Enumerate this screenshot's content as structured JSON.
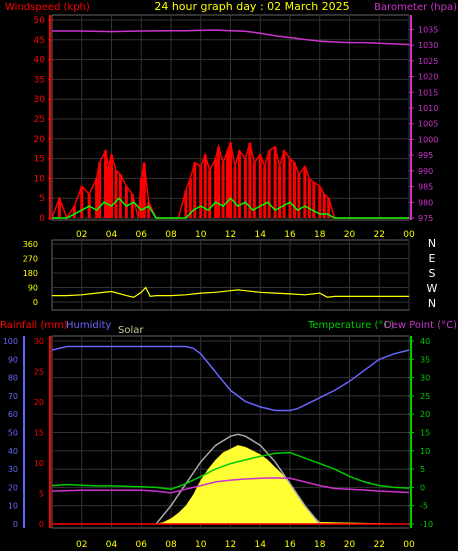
{
  "title": "24 hour graph day : 02 March 2025",
  "colors": {
    "wind_speed": "#ff0000",
    "wind_avg": "#00ff00",
    "wind_gust_white": "#ffffff",
    "barometer": "#cc33cc",
    "wind_dir": "#ffff00",
    "rain_axis": "#ff0000",
    "humidity": "#6666ff",
    "solar_label": "#cccc99",
    "temperature": "#00cc00",
    "dew_point": "#cc33cc",
    "solar_fill": "#ffff33",
    "solar_max": "#aaaaaa",
    "grid": "#333333",
    "axis_text": "#ffff00"
  },
  "chart_data": [
    {
      "type": "line",
      "name": "wind_barometer",
      "labels": {
        "left": "Windspeed (kph)",
        "right": "Barometer (hpa)"
      },
      "x_ticks": [
        "02",
        "04",
        "06",
        "08",
        "10",
        "12",
        "14",
        "16",
        "18",
        "20",
        "22",
        "00"
      ],
      "left_ticks": [
        "0",
        "5",
        "10",
        "15",
        "20",
        "25",
        "30",
        "35",
        "40",
        "45",
        "50"
      ],
      "right_ticks": [
        "975",
        "980",
        "985",
        "990",
        "995",
        "1000",
        "1005",
        "1010",
        "1015",
        "1020",
        "1025",
        "1030",
        "1035"
      ],
      "ylim_left": [
        0,
        50
      ],
      "ylim_right": [
        975,
        1038
      ],
      "xlim_hours": [
        0,
        24
      ],
      "series": [
        {
          "name": "Barometer",
          "axis": "right",
          "x": [
            0,
            2,
            4,
            6,
            8,
            9,
            10,
            11,
            12,
            13,
            14,
            15,
            16,
            17,
            18,
            19,
            20,
            21,
            22,
            23,
            24
          ],
          "y": [
            1034.5,
            1034.5,
            1034.3,
            1034.5,
            1034.6,
            1034.6,
            1034.7,
            1034.8,
            1034.6,
            1034.4,
            1033.8,
            1033.0,
            1032.4,
            1031.8,
            1031.3,
            1031.0,
            1030.8,
            1030.8,
            1030.6,
            1030.4,
            1030.2
          ]
        },
        {
          "name": "Wind gust",
          "axis": "left",
          "x": [
            0,
            0.5,
            1,
            1.5,
            2,
            2.5,
            3,
            3.2,
            3.6,
            3.8,
            4.0,
            4.3,
            4.6,
            5.0,
            5.4,
            5.8,
            6.0,
            6.2,
            6.5,
            7.0,
            7.5,
            8.0,
            8.5,
            9.0,
            9.3,
            9.6,
            10.0,
            10.3,
            10.6,
            11.0,
            11.2,
            11.5,
            11.8,
            12.0,
            12.3,
            12.6,
            13.0,
            13.3,
            13.6,
            14.0,
            14.3,
            14.6,
            15.0,
            15.3,
            15.6,
            16.0,
            16.3,
            16.6,
            17.0,
            17.3,
            17.6,
            18.0,
            18.3,
            18.6,
            19.0,
            24
          ],
          "y": [
            0,
            5,
            0,
            3,
            8,
            6,
            10,
            14,
            17,
            13,
            16,
            12,
            11,
            8,
            6,
            0,
            10,
            14,
            4,
            0,
            0,
            0,
            0,
            7,
            10,
            14,
            13,
            16,
            12,
            15,
            18,
            14,
            17,
            19,
            13,
            17,
            15,
            19,
            14,
            16,
            13,
            17,
            18,
            13,
            17,
            15,
            14,
            11,
            13,
            10,
            9,
            8,
            6,
            5,
            0,
            0
          ]
        },
        {
          "name": "Wind average",
          "axis": "left",
          "x": [
            0,
            1,
            2,
            2.5,
            3,
            3.5,
            4,
            4.5,
            5,
            5.5,
            6,
            6.5,
            7,
            9,
            9.5,
            10,
            10.5,
            11,
            11.5,
            12,
            12.5,
            13,
            13.5,
            14,
            14.5,
            15,
            15.5,
            16,
            16.5,
            17,
            17.5,
            18,
            18.5,
            19,
            24
          ],
          "y": [
            0,
            0,
            2,
            3,
            2,
            4,
            3,
            5,
            3,
            4,
            2,
            3,
            0,
            0,
            2,
            3,
            2,
            4,
            3,
            5,
            3,
            4,
            2,
            3,
            4,
            2,
            3,
            4,
            2,
            3,
            2,
            1,
            1,
            0,
            0
          ]
        }
      ]
    },
    {
      "type": "line",
      "name": "wind_direction",
      "left_ticks": [
        "0",
        "90",
        "180",
        "270",
        "360"
      ],
      "right_labels": [
        "N",
        "W",
        "S",
        "E",
        "N"
      ],
      "ylim": [
        0,
        360
      ],
      "series": [
        {
          "name": "Wind direction",
          "x": [
            0,
            1,
            2,
            3,
            4,
            5,
            5.5,
            6,
            6.3,
            6.6,
            7,
            8,
            9,
            10,
            11,
            12,
            12.5,
            13,
            14,
            15,
            16,
            17,
            18,
            18.5,
            19,
            20,
            21,
            22,
            23,
            24
          ],
          "y": [
            40,
            40,
            45,
            55,
            65,
            40,
            30,
            60,
            90,
            35,
            40,
            40,
            45,
            55,
            60,
            70,
            75,
            70,
            60,
            55,
            50,
            45,
            55,
            30,
            35,
            35,
            35,
            35,
            35,
            35
          ]
        }
      ]
    },
    {
      "type": "area",
      "name": "temp_humidity_solar",
      "labels": {
        "rainfall": "Rainfall (mm)",
        "humidity": "Humidity",
        "solar": "Solar",
        "temperature": "Temperature (°C)",
        "dew_point": "Dew Point (°C)"
      },
      "x_ticks": [
        "02",
        "04",
        "06",
        "08",
        "10",
        "12",
        "14",
        "16",
        "18",
        "20",
        "22",
        "00"
      ],
      "humidity_ticks": [
        "0",
        "10",
        "20",
        "30",
        "40",
        "50",
        "60",
        "70",
        "80",
        "90",
        "100"
      ],
      "rain_ticks": [
        "0",
        "5",
        "10",
        "15",
        "20",
        "25",
        "30"
      ],
      "temp_ticks": [
        "-10",
        "-5",
        "0",
        "5",
        "10",
        "15",
        "20",
        "25",
        "30",
        "35",
        "40"
      ],
      "ylim_humidity": [
        0,
        100
      ],
      "ylim_temp": [
        -10,
        40
      ],
      "ylim_rain": [
        0,
        30
      ],
      "series": [
        {
          "name": "Humidity",
          "axis": "humidity",
          "x": [
            0,
            1,
            2,
            4,
            6,
            8,
            9,
            9.5,
            10,
            10.5,
            11,
            11.5,
            12,
            13,
            14,
            15,
            16,
            16.5,
            17,
            18,
            19,
            20,
            21,
            22,
            23,
            24
          ],
          "y": [
            95,
            97,
            97,
            97,
            97,
            97,
            97,
            96,
            93,
            88,
            83,
            78,
            73,
            67,
            64,
            62,
            62,
            63,
            65,
            69,
            73,
            78,
            84,
            90,
            93,
            95
          ]
        },
        {
          "name": "Temperature",
          "axis": "temp",
          "x": [
            0,
            1,
            2,
            3,
            4,
            5,
            6,
            7,
            8,
            9,
            10,
            11,
            12,
            13,
            14,
            15,
            16,
            17,
            18,
            19,
            20,
            21,
            22,
            23,
            24
          ],
          "y": [
            0.5,
            0.8,
            0.6,
            0.4,
            0.4,
            0.3,
            0.2,
            0,
            -0.5,
            1,
            3,
            5,
            6.5,
            7.5,
            8.5,
            9.3,
            9.5,
            8,
            6.5,
            5,
            3,
            1.5,
            0.5,
            0,
            -0.2
          ]
        },
        {
          "name": "Dew Point",
          "axis": "temp",
          "x": [
            0,
            2,
            4,
            6,
            7,
            8,
            9,
            10,
            11,
            12,
            13,
            14,
            15,
            16,
            17,
            18,
            19,
            20,
            21,
            22,
            23,
            24
          ],
          "y": [
            -1,
            -0.8,
            -0.8,
            -0.8,
            -1,
            -1.5,
            -0.5,
            0.5,
            1.5,
            2,
            2.3,
            2.5,
            2.6,
            2.5,
            1.5,
            0.5,
            -0.3,
            -0.5,
            -0.7,
            -1,
            -1.2,
            -1.4
          ]
        },
        {
          "name": "Solar",
          "axis": "humidity",
          "x": [
            0,
            7,
            7.5,
            8,
            8.5,
            9,
            9.5,
            10,
            10.5,
            11,
            11.5,
            12,
            12.5,
            13,
            13.5,
            14,
            14.5,
            15,
            15.5,
            16,
            16.5,
            17,
            17.5,
            18,
            24
          ],
          "y": [
            0,
            0,
            1,
            3,
            6,
            10,
            16,
            24,
            30,
            35,
            39,
            41,
            43,
            42,
            40,
            38,
            35,
            31,
            27,
            22,
            16,
            10,
            5,
            1,
            0
          ]
        },
        {
          "name": "Solar max",
          "axis": "humidity",
          "x": [
            7,
            8,
            9,
            10,
            11,
            12,
            12.5,
            13,
            14,
            15,
            16,
            17,
            18
          ],
          "y": [
            0,
            10,
            22,
            34,
            43,
            48,
            49,
            48,
            43,
            34,
            22,
            10,
            0
          ]
        }
      ]
    }
  ]
}
